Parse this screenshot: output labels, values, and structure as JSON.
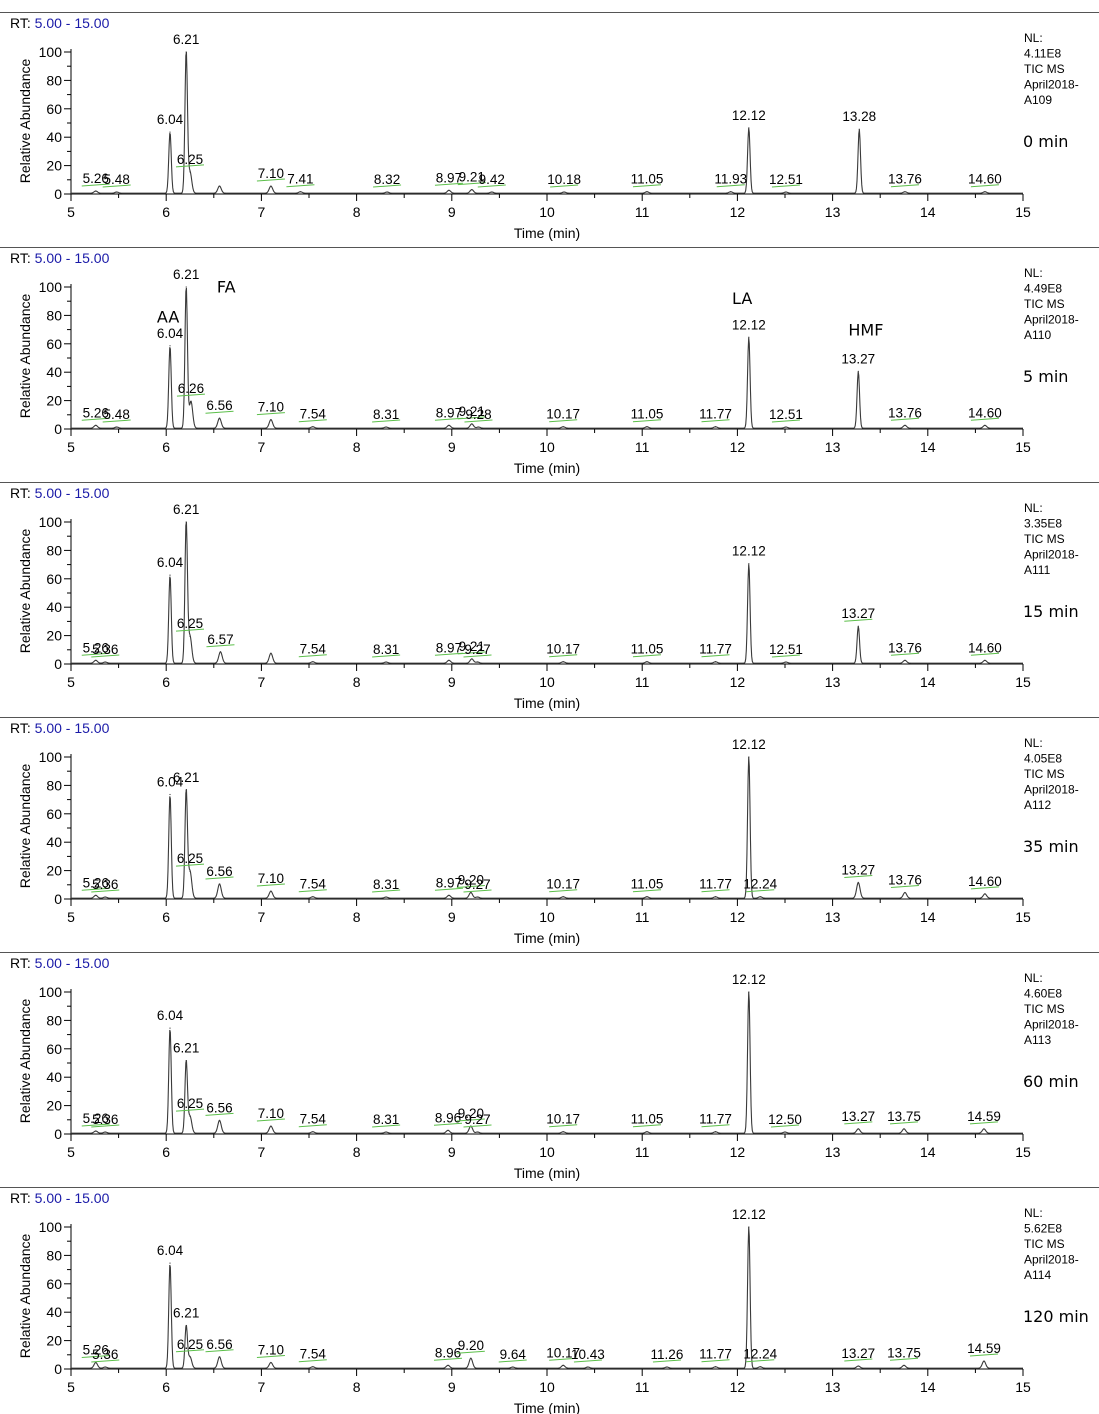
{
  "chart_data": [
    {
      "type": "line",
      "rt_prefix": "RT:",
      "rt_range": "5.00 - 15.00",
      "nl_lines": [
        "NL:",
        "4.11E8",
        "TIC  MS",
        "April2018-",
        "A109"
      ],
      "time_label": "0 min",
      "xlabel": "Time (min)",
      "ylabel": "Relative Abundance",
      "xlim": [
        5,
        15
      ],
      "ylim": [
        0,
        100
      ],
      "xticks": [
        5,
        6,
        7,
        8,
        9,
        10,
        11,
        12,
        13,
        14,
        15
      ],
      "yticks": [
        0,
        20,
        40,
        60,
        80,
        100
      ],
      "peaks": [
        {
          "rt": 5.26,
          "height": 1.5,
          "label": "5.26"
        },
        {
          "rt": 5.48,
          "height": 0.8,
          "label": "5.48"
        },
        {
          "rt": 6.04,
          "height": 43,
          "label": "6.04"
        },
        {
          "rt": 6.21,
          "height": 100,
          "label": "6.21"
        },
        {
          "rt": 6.25,
          "height": 15,
          "label": "6.25"
        },
        {
          "rt": 6.56,
          "height": 5,
          "label": ""
        },
        {
          "rt": 7.1,
          "height": 5,
          "label": "7.10"
        },
        {
          "rt": 7.41,
          "height": 1,
          "label": "7.41"
        },
        {
          "rt": 8.32,
          "height": 0.8,
          "label": "8.32"
        },
        {
          "rt": 8.97,
          "height": 2,
          "label": "8.97"
        },
        {
          "rt": 9.21,
          "height": 2.5,
          "label": "9.21"
        },
        {
          "rt": 9.42,
          "height": 0.8,
          "label": "9.42"
        },
        {
          "rt": 10.18,
          "height": 0.8,
          "label": "10.18"
        },
        {
          "rt": 11.05,
          "height": 1,
          "label": "11.05"
        },
        {
          "rt": 11.93,
          "height": 1,
          "label": "11.93"
        },
        {
          "rt": 12.12,
          "height": 46,
          "label": "12.12"
        },
        {
          "rt": 12.51,
          "height": 0.8,
          "label": "12.51"
        },
        {
          "rt": 13.28,
          "height": 45,
          "label": "13.28"
        },
        {
          "rt": 13.76,
          "height": 1,
          "label": "13.76"
        },
        {
          "rt": 14.6,
          "height": 1,
          "label": "14.60"
        }
      ],
      "annotations": []
    },
    {
      "type": "line",
      "rt_prefix": "RT:",
      "rt_range": "5.00 - 15.00",
      "nl_lines": [
        "NL:",
        "4.49E8",
        "TIC  MS",
        "April2018-",
        "A110"
      ],
      "time_label": "5 min",
      "xlabel": "Time (min)",
      "ylabel": "Relative Abundance",
      "xlim": [
        5,
        15
      ],
      "ylim": [
        0,
        100
      ],
      "xticks": [
        5,
        6,
        7,
        8,
        9,
        10,
        11,
        12,
        13,
        14,
        15
      ],
      "yticks": [
        0,
        20,
        40,
        60,
        80,
        100
      ],
      "peaks": [
        {
          "rt": 5.26,
          "height": 2,
          "label": "5.26"
        },
        {
          "rt": 5.48,
          "height": 0.8,
          "label": "5.48"
        },
        {
          "rt": 6.04,
          "height": 58,
          "label": "6.04"
        },
        {
          "rt": 6.21,
          "height": 100,
          "label": "6.21"
        },
        {
          "rt": 6.26,
          "height": 19,
          "label": "6.26"
        },
        {
          "rt": 6.56,
          "height": 7,
          "label": "6.56"
        },
        {
          "rt": 7.1,
          "height": 6,
          "label": "7.10"
        },
        {
          "rt": 7.54,
          "height": 1,
          "label": "7.54"
        },
        {
          "rt": 8.31,
          "height": 0.8,
          "label": "8.31"
        },
        {
          "rt": 8.97,
          "height": 2,
          "label": "8.97"
        },
        {
          "rt": 9.21,
          "height": 3,
          "label": "9.21"
        },
        {
          "rt": 9.28,
          "height": 0.8,
          "label": "9.28"
        },
        {
          "rt": 10.17,
          "height": 1,
          "label": "10.17"
        },
        {
          "rt": 11.05,
          "height": 1,
          "label": "11.05"
        },
        {
          "rt": 11.77,
          "height": 1,
          "label": "11.77"
        },
        {
          "rt": 12.12,
          "height": 64,
          "label": "12.12"
        },
        {
          "rt": 12.51,
          "height": 0.8,
          "label": "12.51"
        },
        {
          "rt": 13.27,
          "height": 40,
          "label": "13.27"
        },
        {
          "rt": 13.76,
          "height": 2,
          "label": "13.76"
        },
        {
          "rt": 14.6,
          "height": 2,
          "label": "14.60"
        }
      ],
      "annotations": [
        {
          "text": "AA",
          "rt": 6.02,
          "y": 75
        },
        {
          "text": "FA",
          "rt": 6.63,
          "y": 96
        },
        {
          "text": "LA",
          "rt": 12.05,
          "y": 88
        },
        {
          "text": "HMF",
          "rt": 13.35,
          "y": 66
        }
      ]
    },
    {
      "type": "line",
      "rt_prefix": "RT:",
      "rt_range": "5.00 - 15.00",
      "nl_lines": [
        "NL:",
        "3.35E8",
        "TIC  MS",
        "April2018-",
        "A111"
      ],
      "time_label": "15 min",
      "xlabel": "Time (min)",
      "ylabel": "Relative Abundance",
      "xlim": [
        5,
        15
      ],
      "ylim": [
        0,
        100
      ],
      "xticks": [
        5,
        6,
        7,
        8,
        9,
        10,
        11,
        12,
        13,
        14,
        15
      ],
      "yticks": [
        0,
        20,
        40,
        60,
        80,
        100
      ],
      "peaks": [
        {
          "rt": 5.26,
          "height": 2,
          "label": "5.26"
        },
        {
          "rt": 5.36,
          "height": 0.8,
          "label": "5.36"
        },
        {
          "rt": 6.04,
          "height": 62,
          "label": "6.04"
        },
        {
          "rt": 6.21,
          "height": 100,
          "label": "6.21"
        },
        {
          "rt": 6.25,
          "height": 19,
          "label": "6.25"
        },
        {
          "rt": 6.57,
          "height": 8,
          "label": "6.57"
        },
        {
          "rt": 7.1,
          "height": 7,
          "label": ""
        },
        {
          "rt": 7.54,
          "height": 1,
          "label": "7.54"
        },
        {
          "rt": 8.31,
          "height": 0.8,
          "label": "8.31"
        },
        {
          "rt": 8.97,
          "height": 2,
          "label": "8.97"
        },
        {
          "rt": 9.21,
          "height": 3,
          "label": "9.21"
        },
        {
          "rt": 9.27,
          "height": 0.8,
          "label": "9.27"
        },
        {
          "rt": 10.17,
          "height": 1,
          "label": "10.17"
        },
        {
          "rt": 11.05,
          "height": 1,
          "label": "11.05"
        },
        {
          "rt": 11.77,
          "height": 1,
          "label": "11.77"
        },
        {
          "rt": 12.12,
          "height": 70,
          "label": "12.12"
        },
        {
          "rt": 12.51,
          "height": 0.8,
          "label": "12.51"
        },
        {
          "rt": 13.27,
          "height": 26,
          "label": "13.27"
        },
        {
          "rt": 13.76,
          "height": 2,
          "label": "13.76"
        },
        {
          "rt": 14.6,
          "height": 2,
          "label": "14.60"
        }
      ],
      "annotations": []
    },
    {
      "type": "line",
      "rt_prefix": "RT:",
      "rt_range": "5.00 - 15.00",
      "nl_lines": [
        "NL:",
        "4.05E8",
        "TIC  MS",
        "April2018-",
        "A112"
      ],
      "time_label": "35 min",
      "xlabel": "Time (min)",
      "ylabel": "Relative Abundance",
      "xlim": [
        5,
        15
      ],
      "ylim": [
        0,
        100
      ],
      "xticks": [
        5,
        6,
        7,
        8,
        9,
        10,
        11,
        12,
        13,
        14,
        15
      ],
      "yticks": [
        0,
        20,
        40,
        60,
        80,
        100
      ],
      "peaks": [
        {
          "rt": 5.26,
          "height": 2,
          "label": "5.26"
        },
        {
          "rt": 5.36,
          "height": 0.8,
          "label": "5.36"
        },
        {
          "rt": 6.04,
          "height": 73,
          "label": "6.04"
        },
        {
          "rt": 6.21,
          "height": 76,
          "label": "6.21"
        },
        {
          "rt": 6.25,
          "height": 19,
          "label": "6.25"
        },
        {
          "rt": 6.56,
          "height": 10,
          "label": "6.56"
        },
        {
          "rt": 7.1,
          "height": 5,
          "label": "7.10"
        },
        {
          "rt": 7.54,
          "height": 1,
          "label": "7.54"
        },
        {
          "rt": 8.31,
          "height": 0.8,
          "label": "8.31"
        },
        {
          "rt": 8.97,
          "height": 2,
          "label": "8.97"
        },
        {
          "rt": 9.2,
          "height": 4,
          "label": "9.20"
        },
        {
          "rt": 9.27,
          "height": 0.8,
          "label": "9.27"
        },
        {
          "rt": 10.17,
          "height": 1,
          "label": "10.17"
        },
        {
          "rt": 11.05,
          "height": 1,
          "label": "11.05"
        },
        {
          "rt": 11.77,
          "height": 1,
          "label": "11.77"
        },
        {
          "rt": 12.12,
          "height": 100,
          "label": "12.12"
        },
        {
          "rt": 12.24,
          "height": 1,
          "label": "12.24"
        },
        {
          "rt": 13.27,
          "height": 11,
          "label": "13.27"
        },
        {
          "rt": 13.76,
          "height": 4,
          "label": "13.76"
        },
        {
          "rt": 14.6,
          "height": 3,
          "label": "14.60"
        }
      ],
      "annotations": []
    },
    {
      "type": "line",
      "rt_prefix": "RT:",
      "rt_range": "5.00 - 15.00",
      "nl_lines": [
        "NL:",
        "4.60E8",
        "TIC  MS",
        "April2018-",
        "A113"
      ],
      "time_label": "60 min",
      "xlabel": "Time (min)",
      "ylabel": "Relative Abundance",
      "xlim": [
        5,
        15
      ],
      "ylim": [
        0,
        100
      ],
      "xticks": [
        5,
        6,
        7,
        8,
        9,
        10,
        11,
        12,
        13,
        14,
        15
      ],
      "yticks": [
        0,
        20,
        40,
        60,
        80,
        100
      ],
      "peaks": [
        {
          "rt": 5.26,
          "height": 1.5,
          "label": "5.26"
        },
        {
          "rt": 5.36,
          "height": 0.8,
          "label": "5.36"
        },
        {
          "rt": 6.04,
          "height": 74,
          "label": "6.04"
        },
        {
          "rt": 6.21,
          "height": 51,
          "label": "6.21"
        },
        {
          "rt": 6.25,
          "height": 12,
          "label": "6.25"
        },
        {
          "rt": 6.56,
          "height": 9,
          "label": "6.56"
        },
        {
          "rt": 7.1,
          "height": 5,
          "label": "7.10"
        },
        {
          "rt": 7.54,
          "height": 1,
          "label": "7.54"
        },
        {
          "rt": 8.31,
          "height": 0.8,
          "label": "8.31"
        },
        {
          "rt": 8.96,
          "height": 2,
          "label": "8.96"
        },
        {
          "rt": 9.2,
          "height": 5,
          "label": "9.20"
        },
        {
          "rt": 9.27,
          "height": 0.8,
          "label": "9.27"
        },
        {
          "rt": 10.17,
          "height": 1,
          "label": "10.17"
        },
        {
          "rt": 11.05,
          "height": 1,
          "label": "11.05"
        },
        {
          "rt": 11.77,
          "height": 1,
          "label": "11.77"
        },
        {
          "rt": 12.12,
          "height": 100,
          "label": "12.12"
        },
        {
          "rt": 12.5,
          "height": 0.8,
          "label": "12.50"
        },
        {
          "rt": 13.27,
          "height": 3,
          "label": "13.27"
        },
        {
          "rt": 13.75,
          "height": 3,
          "label": "13.75"
        },
        {
          "rt": 14.59,
          "height": 3,
          "label": "14.59"
        }
      ],
      "annotations": []
    },
    {
      "type": "line",
      "rt_prefix": "RT:",
      "rt_range": "5.00 - 15.00",
      "nl_lines": [
        "NL:",
        "5.62E8",
        "TIC  MS",
        "April2018-",
        "A114"
      ],
      "time_label": "120 min",
      "xlabel": "Time (min)",
      "ylabel": "Relative Abundance",
      "xlim": [
        5,
        15
      ],
      "ylim": [
        0,
        100
      ],
      "xticks": [
        5,
        6,
        7,
        8,
        9,
        10,
        11,
        12,
        13,
        14,
        15
      ],
      "yticks": [
        0,
        20,
        40,
        60,
        80,
        100
      ],
      "peaks": [
        {
          "rt": 5.26,
          "height": 4,
          "label": "5.26"
        },
        {
          "rt": 5.36,
          "height": 0.8,
          "label": "5.36"
        },
        {
          "rt": 6.04,
          "height": 74,
          "label": "6.04"
        },
        {
          "rt": 6.21,
          "height": 30,
          "label": "6.21"
        },
        {
          "rt": 6.25,
          "height": 8,
          "label": "6.25"
        },
        {
          "rt": 6.56,
          "height": 8,
          "label": "6.56"
        },
        {
          "rt": 7.1,
          "height": 4,
          "label": "7.10"
        },
        {
          "rt": 7.54,
          "height": 1,
          "label": "7.54"
        },
        {
          "rt": 8.96,
          "height": 2,
          "label": "8.96"
        },
        {
          "rt": 9.2,
          "height": 7,
          "label": "9.20"
        },
        {
          "rt": 9.64,
          "height": 0.8,
          "label": "9.64"
        },
        {
          "rt": 10.17,
          "height": 2,
          "label": "10.17"
        },
        {
          "rt": 10.43,
          "height": 0.8,
          "label": "10.43"
        },
        {
          "rt": 11.26,
          "height": 0.8,
          "label": "11.26"
        },
        {
          "rt": 11.77,
          "height": 1,
          "label": "11.77"
        },
        {
          "rt": 12.12,
          "height": 100,
          "label": "12.12"
        },
        {
          "rt": 12.24,
          "height": 1,
          "label": "12.24"
        },
        {
          "rt": 13.27,
          "height": 1.5,
          "label": "13.27"
        },
        {
          "rt": 13.75,
          "height": 2,
          "label": "13.75"
        },
        {
          "rt": 14.59,
          "height": 5,
          "label": "14.59"
        }
      ],
      "annotations": []
    }
  ],
  "colors": {
    "trace": "#3a3a3a",
    "axis": "#000000",
    "rt_range": "#1a1aa8",
    "label_leader": "#5cbf4a",
    "separator": "#555555"
  }
}
